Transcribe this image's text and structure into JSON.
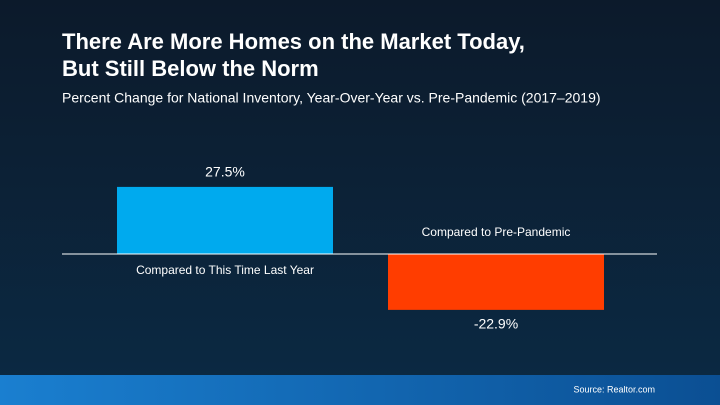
{
  "chart_data": {
    "type": "bar",
    "title": "There Are More Homes on the Market Today,",
    "title_line2": "But Still Below the Norm",
    "subtitle": "Percent Change for National Inventory, Year-Over-Year vs. Pre-Pandemic (2017–2019)",
    "categories": [
      "Compared to This Time Last Year",
      "Compared to Pre-Pandemic"
    ],
    "values": [
      27.5,
      -22.9
    ],
    "value_labels": [
      "27.5%",
      "-22.9%"
    ],
    "colors": [
      "#00aaee",
      "#ff3d00"
    ],
    "ylim": [
      -50,
      50
    ],
    "source": "Source: Realtor.com"
  }
}
